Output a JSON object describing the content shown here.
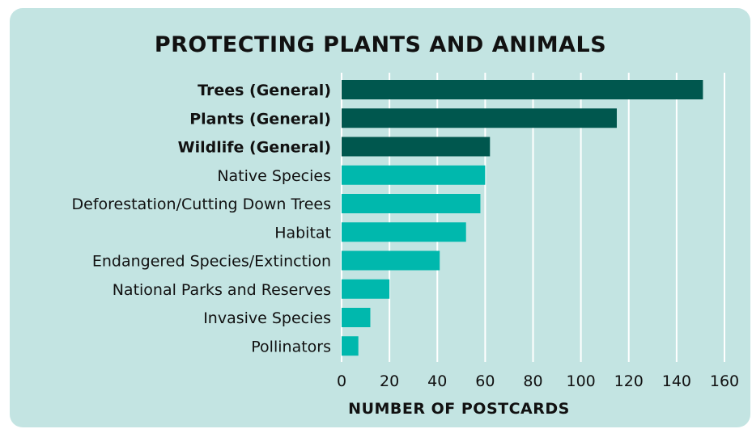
{
  "chart_data": {
    "type": "bar",
    "orientation": "horizontal",
    "title": "PROTECTING PLANTS AND ANIMALS",
    "xlabel": "NUMBER OF POSTCARDS",
    "ylabel": "",
    "xlim": [
      0,
      160
    ],
    "xticks": [
      0,
      20,
      40,
      60,
      80,
      100,
      120,
      140,
      160
    ],
    "grid": "vertical",
    "categories": [
      "Trees (General)",
      "Plants (General)",
      "Wildlife (General)",
      "Native Species",
      "Deforestation/Cutting Down Trees",
      "Habitat",
      "Endangered Species/Extinction",
      "National Parks and Reserves",
      "Invasive Species",
      "Pollinators"
    ],
    "values": [
      151,
      115,
      62,
      60,
      58,
      52,
      41,
      20,
      12,
      7
    ],
    "highlighted": [
      true,
      true,
      true,
      false,
      false,
      false,
      false,
      false,
      false,
      false
    ],
    "colors": {
      "highlight": "#00574e",
      "normal": "#00b8ad",
      "background": "#c3e4e2",
      "grid": "#ffffff"
    }
  }
}
